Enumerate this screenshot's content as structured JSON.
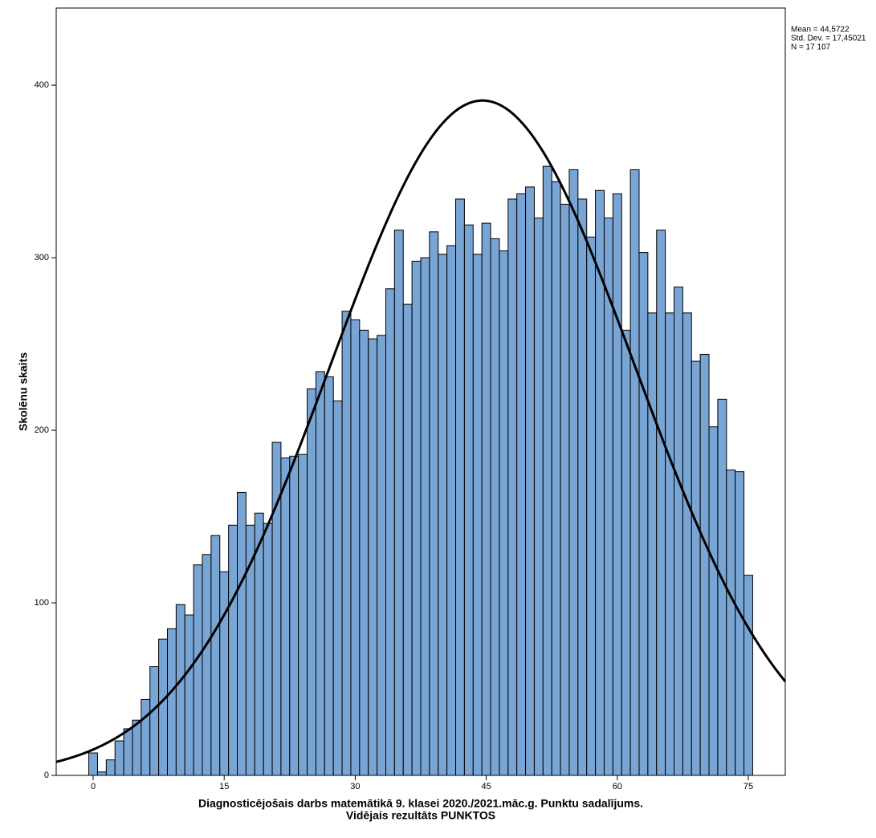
{
  "chart_data": {
    "type": "histogram",
    "x_label": [
      "Diagnosticējošais darbs matemātikā 9. klasei 2020./2021.māc.g. Punktu sadalījums.",
      "Vidējais rezultāts PUNKTOS"
    ],
    "y_label": "Skolēnu skaits",
    "bins": [
      -0.5,
      0.5,
      1.5,
      2.5,
      3.5,
      4.5,
      5.5,
      6.5,
      7.5,
      8.5,
      9.5,
      10.5,
      11.5,
      12.5,
      13.5,
      14.5,
      15.5,
      16.5,
      17.5,
      18.5,
      19.5,
      20.5,
      21.5,
      22.5,
      23.5,
      24.5,
      25.5,
      26.5,
      27.5,
      28.5,
      29.5,
      30.5,
      31.5,
      32.5,
      33.5,
      34.5,
      35.5,
      36.5,
      37.5,
      38.5,
      39.5,
      40.5,
      41.5,
      42.5,
      43.5,
      44.5,
      45.5,
      46.5,
      47.5,
      48.5,
      49.5,
      50.5,
      51.5,
      52.5,
      53.5,
      54.5,
      55.5,
      56.5,
      57.5,
      58.5,
      59.5,
      60.5,
      61.5,
      62.5,
      63.5,
      64.5,
      65.5,
      66.5,
      67.5,
      68.5,
      69.5,
      70.5,
      71.5,
      72.5,
      73.5,
      74.5,
      75.5
    ],
    "values": [
      13,
      2,
      9,
      20,
      27,
      32,
      44,
      63,
      79,
      85,
      99,
      93,
      122,
      128,
      139,
      118,
      145,
      164,
      145,
      152,
      146,
      193,
      184,
      185,
      186,
      224,
      234,
      231,
      217,
      269,
      264,
      258,
      253,
      255,
      282,
      316,
      273,
      298,
      300,
      315,
      302,
      307,
      334,
      319,
      302,
      320,
      311,
      304,
      334,
      337,
      341,
      323,
      353,
      344,
      331,
      351,
      334,
      312,
      339,
      323,
      337,
      258,
      351,
      303,
      268,
      316,
      268,
      283,
      268,
      240,
      244,
      202,
      218,
      177,
      176,
      116
    ],
    "color": "#79a5d5",
    "normal_curve": [
      {
        "value": 44.5722,
        "label": "Mean = 44,5722"
      },
      {
        "value": 17.45021,
        "label": "Std. Dev. = 17,45021"
      },
      {
        "value": 17107,
        "label": "N = 17 107"
      }
    ],
    "curve_color": "#000000",
    "xlim": [
      -4.23,
      79.23
    ],
    "xticks": [
      0,
      15,
      30,
      45,
      60,
      75
    ],
    "ylim": [
      0,
      444.7
    ],
    "yticks": [
      0,
      100,
      200,
      300,
      400
    ],
    "grid": false
  }
}
